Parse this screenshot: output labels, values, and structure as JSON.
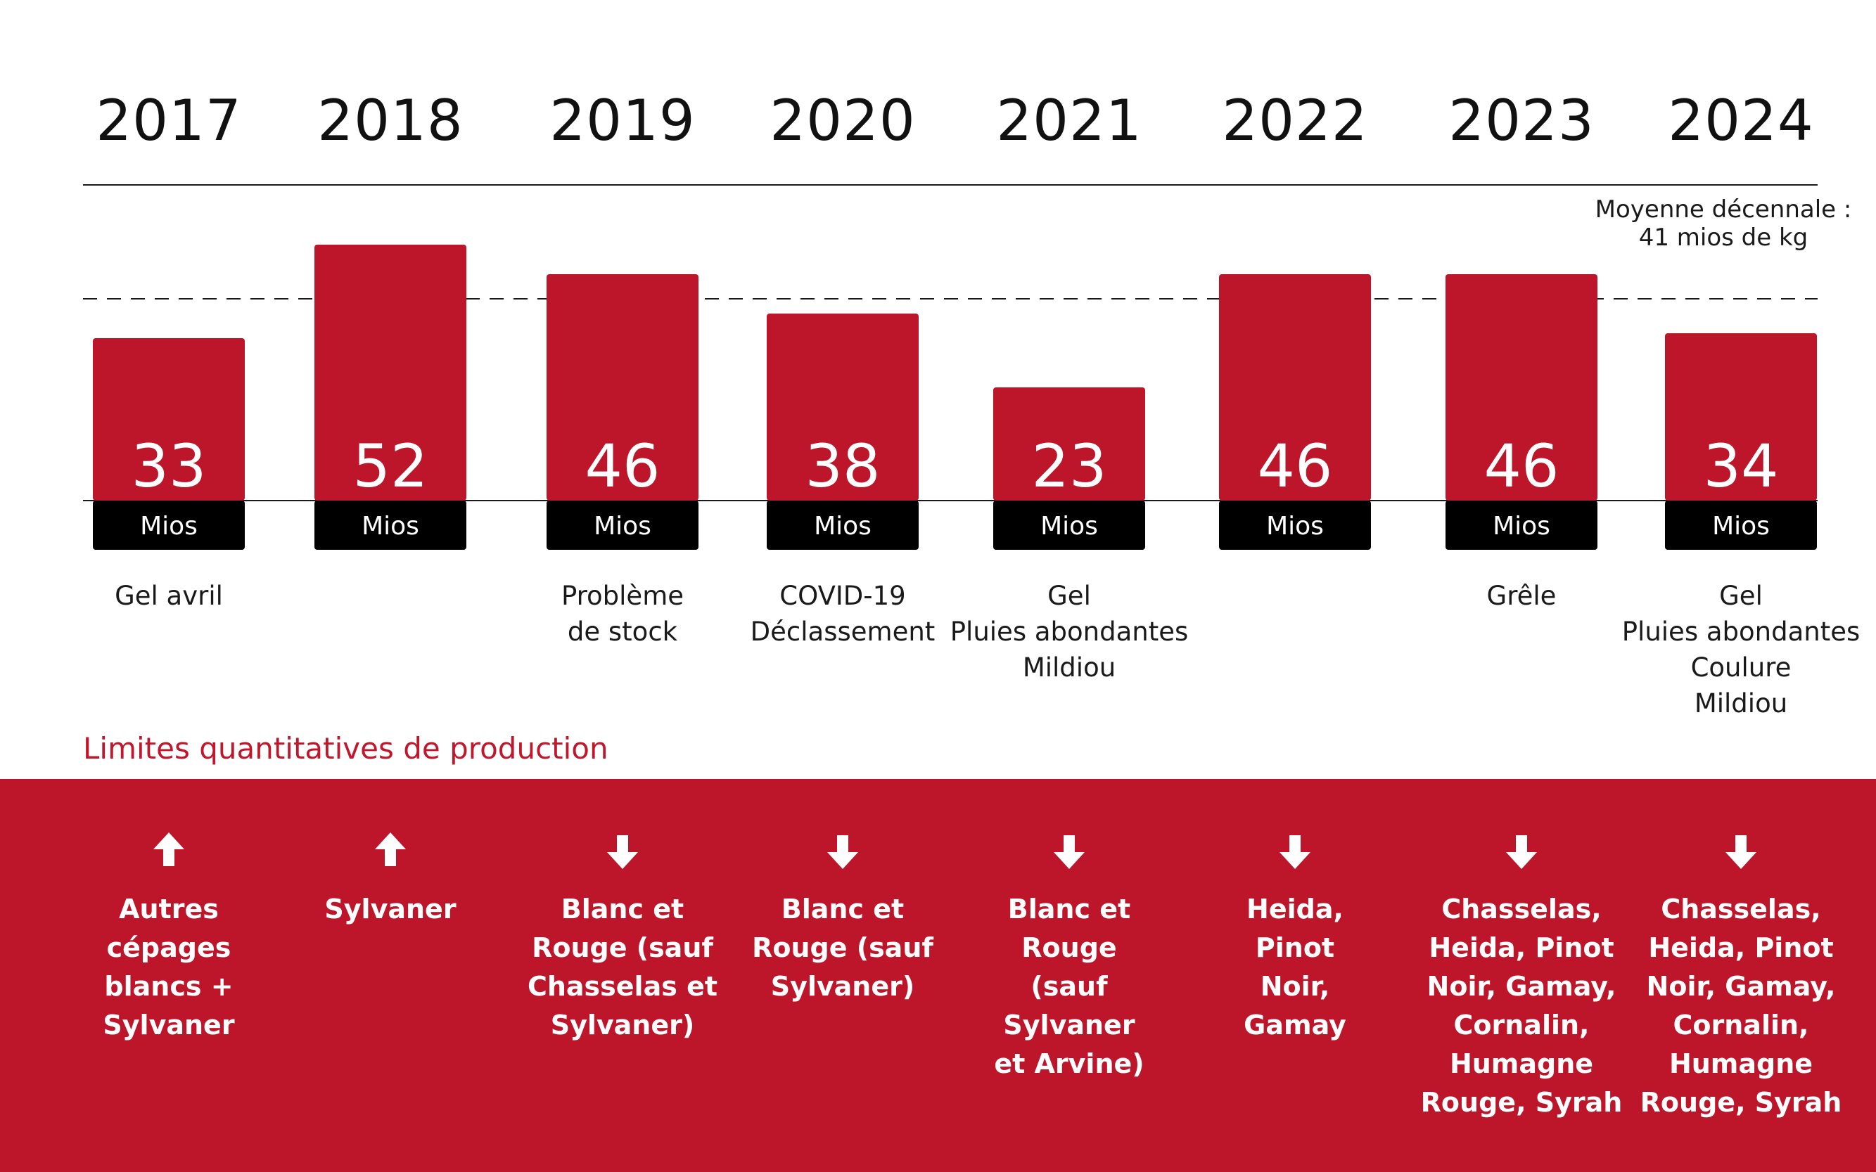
{
  "colors": {
    "bar": "#bd162b",
    "unit_band": "#000000",
    "band": "#bd162b",
    "title": "#c0172c"
  },
  "years": [
    "2017",
    "2018",
    "2019",
    "2020",
    "2021",
    "2022",
    "2023",
    "2024"
  ],
  "average_label": {
    "line1": "Moyenne décennale :",
    "line2": "41 mios de kg"
  },
  "chart_data": {
    "type": "bar",
    "title": "",
    "categories": [
      "2017",
      "2018",
      "2019",
      "2020",
      "2021",
      "2022",
      "2023",
      "2024"
    ],
    "values": [
      33,
      52,
      46,
      38,
      23,
      46,
      46,
      34
    ],
    "unit_label": "Mios",
    "reference_line": {
      "value": 41,
      "label": "Moyenne décennale : 41 mios de kg",
      "style": "dashed"
    },
    "xlabel": "",
    "ylabel": "",
    "ylim": [
      0,
      60
    ]
  },
  "notes": [
    [
      "Gel avril"
    ],
    [],
    [
      "Problème",
      "de stock"
    ],
    [
      "COVID-19",
      "Déclassement"
    ],
    [
      "Gel",
      "Pluies abondantes",
      "Mildiou"
    ],
    [],
    [
      "Grêle"
    ],
    [
      "Gel",
      "Pluies abondantes",
      "Coulure",
      "Mildiou"
    ]
  ],
  "section_title": "Limites quantitatives de production",
  "limits": [
    {
      "direction": "up-arrow-icon",
      "lines": [
        "Autres",
        "cépages",
        "blancs +",
        "Sylvaner"
      ]
    },
    {
      "direction": "up-arrow-icon",
      "lines": [
        "Sylvaner"
      ]
    },
    {
      "direction": "down-arrow-icon",
      "lines": [
        "Blanc et",
        "Rouge (sauf",
        "Chasselas et",
        "Sylvaner)"
      ]
    },
    {
      "direction": "down-arrow-icon",
      "lines": [
        "Blanc et",
        "Rouge (sauf",
        "Sylvaner)"
      ]
    },
    {
      "direction": "down-arrow-icon",
      "lines": [
        "Blanc et Rouge",
        "(sauf Sylvaner",
        "et Arvine)"
      ]
    },
    {
      "direction": "down-arrow-icon",
      "lines": [
        "Heida,",
        "Pinot",
        "Noir,",
        "Gamay"
      ]
    },
    {
      "direction": "down-arrow-icon",
      "lines": [
        "Chasselas,",
        "Heida, Pinot",
        "Noir, Gamay,",
        "Cornalin,",
        "Humagne",
        "Rouge, Syrah"
      ]
    },
    {
      "direction": "down-arrow-icon",
      "lines": [
        "Chasselas,",
        "Heida, Pinot",
        "Noir, Gamay,",
        "Cornalin,",
        "Humagne",
        "Rouge, Syrah"
      ]
    }
  ]
}
